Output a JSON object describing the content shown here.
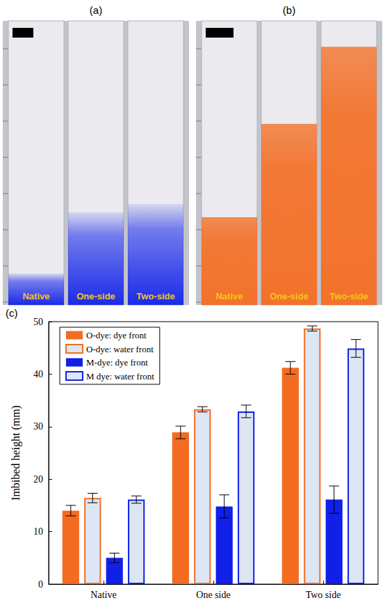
{
  "photos": [
    {
      "label": "(a)",
      "strips": [
        "Native",
        "One-side",
        "Two-side"
      ]
    },
    {
      "label": "(b)",
      "strips": [
        "Native",
        "One-side",
        "Two-side"
      ]
    }
  ],
  "chart_data": {
    "type": "bar",
    "panel_label": "(c)",
    "ylabel": "Imbibed height (mm)",
    "categories": [
      "Native",
      "One side",
      "Two side"
    ],
    "ylim": [
      0,
      50
    ],
    "yticks": [
      0,
      10,
      20,
      30,
      40,
      50
    ],
    "legend": "top-left",
    "grid": false,
    "series": [
      {
        "name": "O-dye: dye front",
        "color": "#f36c21",
        "marker": "filled",
        "values": [
          14.0,
          28.9,
          41.2
        ],
        "errors": [
          1.0,
          1.2,
          1.2
        ]
      },
      {
        "name": "O-dye: water front",
        "color": "#f36c21",
        "marker": "open",
        "values": [
          16.4,
          33.3,
          48.7
        ],
        "errors": [
          0.9,
          0.5,
          0.5
        ]
      },
      {
        "name": "M-dye: dye front",
        "color": "#1020e8",
        "marker": "filled",
        "values": [
          5.0,
          14.8,
          16.1
        ],
        "errors": [
          0.9,
          2.2,
          2.6
        ]
      },
      {
        "name": "M dye: water front",
        "color": "#1020e8",
        "marker": "open",
        "values": [
          16.1,
          32.9,
          44.9
        ],
        "errors": [
          0.7,
          1.2,
          1.7
        ]
      }
    ]
  }
}
